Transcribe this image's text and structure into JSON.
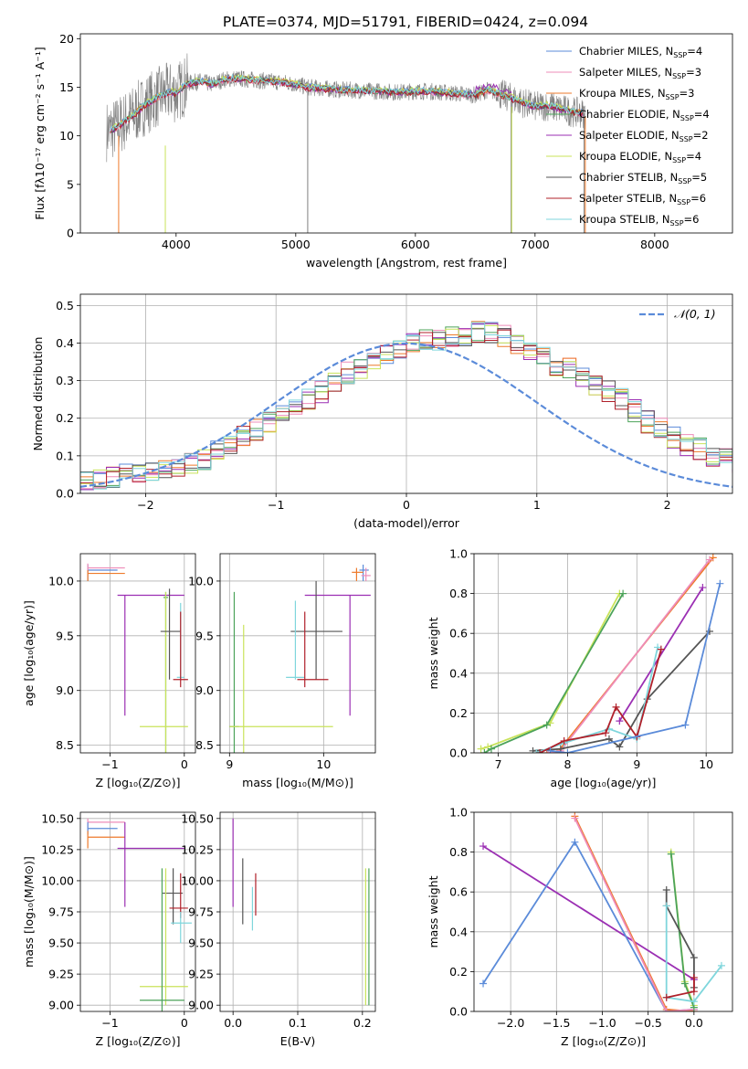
{
  "title": "PLATE=0374, MJD=51791, FIBERID=0424, z=0.094",
  "colors": {
    "chabrier_miles": "#5B8BD9",
    "salpeter_miles": "#EE8CB9",
    "kroupa_miles": "#EE7A2B",
    "chabrier_elodie": "#4CA35A",
    "salpeter_elodie": "#9B2FB3",
    "kroupa_elodie": "#C9E35A",
    "chabrier_stelib": "#555555",
    "salpeter_stelib": "#B0202A",
    "kroupa_stelib": "#7FD6DC",
    "data": "#7f7f7f",
    "normal": "#5B8BD9",
    "grid": "#b0b0b0"
  },
  "chart_data": [
    {
      "id": "spectrum",
      "type": "line",
      "xlabel": "wavelength [Angstrom, rest frame]",
      "ylabel": "Flux [fλ10⁻¹⁷ erg cm⁻² s⁻¹ A⁻¹]",
      "xlim": [
        3200,
        8650
      ],
      "ylim": [
        0,
        20.5
      ],
      "xticks": [
        4000,
        5000,
        6000,
        7000,
        8000
      ],
      "yticks": [
        0,
        5,
        10,
        15,
        20
      ],
      "grid": false,
      "legend_position": "top-right",
      "continuum": {
        "x": [
          3450,
          3550,
          3650,
          3750,
          3850,
          3950,
          4000,
          4100,
          4200,
          4300,
          4400,
          4500,
          4600,
          4700,
          4800,
          4900,
          5000,
          5100,
          5200,
          5300,
          5400,
          5500,
          5600,
          5700,
          5800,
          5900,
          6000,
          6100,
          6200,
          6300,
          6400,
          6500,
          6600,
          6700,
          6800,
          6900,
          7000,
          7100,
          7200,
          7300,
          7400
        ],
        "y": [
          10.5,
          11.3,
          12.2,
          13.3,
          14.0,
          14.5,
          14.4,
          15.4,
          15.6,
          15.3,
          15.8,
          15.9,
          15.8,
          15.7,
          15.6,
          15.5,
          15.3,
          15.0,
          14.9,
          14.8,
          14.7,
          14.7,
          14.6,
          14.6,
          14.5,
          14.5,
          14.6,
          14.6,
          14.5,
          14.4,
          14.3,
          14.2,
          14.7,
          14.3,
          13.9,
          13.4,
          13.0,
          13.1,
          12.8,
          12.5,
          12.3
        ]
      },
      "series": [
        {
          "name": "Chabrier MILES, N",
          "sub": "SSP",
          "suffix": "=4",
          "color_key": "chabrier_miles"
        },
        {
          "name": "Salpeter MILES, N",
          "sub": "SSP",
          "suffix": "=3",
          "color_key": "salpeter_miles"
        },
        {
          "name": "Kroupa MILES, N",
          "sub": "SSP",
          "suffix": "=3",
          "color_key": "kroupa_miles"
        },
        {
          "name": "Chabrier ELODIE, N",
          "sub": "SSP",
          "suffix": "=4",
          "color_key": "chabrier_elodie"
        },
        {
          "name": "Salpeter ELODIE, N",
          "sub": "SSP",
          "suffix": "=2",
          "color_key": "salpeter_elodie"
        },
        {
          "name": "Kroupa ELODIE, N",
          "sub": "SSP",
          "suffix": "=4",
          "color_key": "kroupa_elodie"
        },
        {
          "name": "Chabrier STELIB, N",
          "sub": "SSP",
          "suffix": "=5",
          "color_key": "chabrier_stelib"
        },
        {
          "name": "Salpeter STELIB, N",
          "sub": "SSP",
          "suffix": "=6",
          "color_key": "salpeter_stelib"
        },
        {
          "name": "Kroupa STELIB, N",
          "sub": "SSP",
          "suffix": "=6",
          "color_key": "kroupa_stelib"
        }
      ]
    },
    {
      "id": "residuals",
      "type": "histogram",
      "xlabel": "(data-model)/error",
      "ylabel": "Normed distribution",
      "xlim": [
        -2.5,
        2.5
      ],
      "ylim": [
        0,
        0.53
      ],
      "xticks": [
        -2,
        -1,
        0,
        1,
        2
      ],
      "yticks": [
        0.0,
        0.1,
        0.2,
        0.3,
        0.4,
        0.5
      ],
      "grid": true,
      "bin_width": 0.1,
      "bin_start": -2.5,
      "values": [
        0.03,
        0.04,
        0.04,
        0.05,
        0.05,
        0.06,
        0.06,
        0.07,
        0.08,
        0.09,
        0.11,
        0.13,
        0.15,
        0.17,
        0.19,
        0.21,
        0.23,
        0.25,
        0.27,
        0.29,
        0.32,
        0.33,
        0.35,
        0.37,
        0.39,
        0.4,
        0.41,
        0.41,
        0.42,
        0.42,
        0.43,
        0.43,
        0.42,
        0.4,
        0.38,
        0.36,
        0.34,
        0.33,
        0.31,
        0.29,
        0.27,
        0.25,
        0.22,
        0.19,
        0.17,
        0.15,
        0.13,
        0.12,
        0.1,
        0.09,
        0.08
      ],
      "legend": "𝒩(0, 1)",
      "legend_position": "top-right"
    },
    {
      "id": "age_vs_z",
      "type": "errorbar",
      "xlabel": "Z [log₁₀(Z/Z⊙)]",
      "ylabel": "age  [log₁₀(age/yr)]",
      "xlim": [
        -1.4,
        0.15
      ],
      "ylim": [
        8.43,
        10.25
      ],
      "xticks": [
        -1,
        0
      ],
      "yticks": [
        8.5,
        9.0,
        9.5,
        10.0
      ],
      "points": [
        {
          "c": "chabrier_miles",
          "x": -1.3,
          "y": 10.1,
          "xl": -1.3,
          "xh": -0.9,
          "yl": 10.0,
          "yh": 10.15
        },
        {
          "c": "salpeter_miles",
          "x": -1.3,
          "y": 10.12,
          "xl": -1.3,
          "xh": -0.8,
          "yl": 10.08,
          "yh": 10.16
        },
        {
          "c": "kroupa_miles",
          "x": -1.3,
          "y": 10.07,
          "xl": -1.3,
          "xh": -0.8,
          "yl": 10.0,
          "yh": 10.1
        },
        {
          "c": "salpeter_elodie",
          "x": -0.8,
          "y": 9.87,
          "xl": -0.9,
          "xh": 0.0,
          "yl": 8.77,
          "yh": 9.87
        },
        {
          "c": "chabrier_elodie",
          "x": -0.25,
          "y": 9.85,
          "xl": -0.28,
          "xh": -0.22,
          "yl": 8.35,
          "yh": 9.9
        },
        {
          "c": "kroupa_elodie",
          "x": -0.25,
          "y": 8.67,
          "xl": -0.6,
          "xh": 0.05,
          "yl": 8.3,
          "yh": 9.9
        },
        {
          "c": "chabrier_stelib",
          "x": -0.2,
          "y": 9.54,
          "xl": -0.32,
          "xh": -0.05,
          "yl": 9.1,
          "yh": 9.93
        },
        {
          "c": "kroupa_stelib",
          "x": -0.05,
          "y": 9.12,
          "xl": -0.1,
          "xh": 0.0,
          "yl": 9.1,
          "yh": 9.8
        },
        {
          "c": "salpeter_stelib",
          "x": -0.05,
          "y": 9.1,
          "xl": -0.15,
          "xh": 0.05,
          "yl": 9.03,
          "yh": 9.72
        }
      ]
    },
    {
      "id": "age_vs_mass",
      "type": "errorbar",
      "xlabel": "mass [log₁₀(M/M⊙)]",
      "ylabel": "",
      "xlim": [
        8.9,
        10.55
      ],
      "ylim": [
        8.43,
        10.25
      ],
      "xticks": [
        9,
        10
      ],
      "yticks": [
        8.5,
        9.0,
        9.5,
        10.0
      ],
      "points": [
        {
          "c": "chabrier_miles",
          "x": 10.42,
          "y": 10.1,
          "xl": 10.38,
          "xh": 10.48,
          "yl": 10.0,
          "yh": 10.15
        },
        {
          "c": "salpeter_miles",
          "x": 10.45,
          "y": 10.05,
          "xl": 10.4,
          "xh": 10.5,
          "yl": 10.0,
          "yh": 10.12
        },
        {
          "c": "kroupa_miles",
          "x": 10.35,
          "y": 10.08,
          "xl": 10.3,
          "xh": 10.42,
          "yl": 10.0,
          "yh": 10.12
        },
        {
          "c": "salpeter_elodie",
          "x": 10.28,
          "y": 9.87,
          "xl": 9.8,
          "xh": 10.5,
          "yl": 8.77,
          "yh": 9.87
        },
        {
          "c": "chabrier_elodie",
          "x": 9.05,
          "y": 8.67,
          "xl": 9.0,
          "xh": 9.1,
          "yl": 8.3,
          "yh": 9.9
        },
        {
          "c": "kroupa_elodie",
          "x": 9.15,
          "y": 8.67,
          "xl": 9.0,
          "xh": 10.1,
          "yl": 8.3,
          "yh": 9.6
        },
        {
          "c": "chabrier_stelib",
          "x": 9.92,
          "y": 9.54,
          "xl": 9.65,
          "xh": 10.2,
          "yl": 9.1,
          "yh": 10.0
        },
        {
          "c": "kroupa_stelib",
          "x": 9.7,
          "y": 9.12,
          "xl": 9.6,
          "xh": 9.8,
          "yl": 9.1,
          "yh": 9.82
        },
        {
          "c": "salpeter_stelib",
          "x": 9.8,
          "y": 9.1,
          "xl": 9.72,
          "xh": 10.05,
          "yl": 9.03,
          "yh": 9.72
        }
      ]
    },
    {
      "id": "weight_vs_age",
      "type": "line",
      "xlabel": "age  [log₁₀(age/yr)]",
      "ylabel": "mass weight",
      "xlim": [
        6.65,
        10.38
      ],
      "ylim": [
        0,
        1.0
      ],
      "xticks": [
        7,
        8,
        9,
        10
      ],
      "yticks": [
        0.0,
        0.2,
        0.4,
        0.6,
        0.8,
        1.0
      ],
      "series": [
        {
          "c": "kroupa_elodie",
          "x": [
            6.75,
            6.85,
            7.75,
            8.75
          ],
          "y": [
            0.02,
            0.03,
            0.15,
            0.8
          ]
        },
        {
          "c": "chabrier_elodie",
          "x": [
            6.8,
            6.9,
            7.7,
            8.8
          ],
          "y": [
            0.0,
            0.02,
            0.14,
            0.8
          ]
        },
        {
          "c": "kroupa_miles",
          "x": [
            7.7,
            7.85,
            10.1
          ],
          "y": [
            0.0,
            0.0,
            0.98
          ]
        },
        {
          "c": "salpeter_miles",
          "x": [
            7.72,
            7.9,
            10.05
          ],
          "y": [
            0.0,
            0.01,
            0.97
          ]
        },
        {
          "c": "salpeter_elodie",
          "x": [
            8.75,
            9.95
          ],
          "y": [
            0.16,
            0.83
          ]
        },
        {
          "c": "chabrier_stelib",
          "x": [
            7.5,
            7.9,
            8.6,
            8.75,
            9.15,
            10.05
          ],
          "y": [
            0.01,
            0.02,
            0.07,
            0.03,
            0.27,
            0.61
          ]
        },
        {
          "c": "kroupa_stelib",
          "x": [
            7.55,
            7.95,
            8.6,
            9.0,
            9.3
          ],
          "y": [
            0.0,
            0.05,
            0.12,
            0.07,
            0.53
          ]
        },
        {
          "c": "salpeter_stelib",
          "x": [
            7.6,
            7.95,
            8.55,
            8.7,
            9.0,
            9.35
          ],
          "y": [
            0.0,
            0.06,
            0.1,
            0.23,
            0.08,
            0.52
          ]
        },
        {
          "c": "chabrier_miles",
          "x": [
            7.75,
            8.0,
            9.7,
            10.2
          ],
          "y": [
            0.01,
            0.0,
            0.14,
            0.85
          ]
        }
      ]
    },
    {
      "id": "mass_vs_z",
      "type": "errorbar",
      "xlabel": "Z [log₁₀(Z/Z⊙)]",
      "ylabel": "mass [log₁₀(M/M⊙)]",
      "xlim": [
        -1.4,
        0.15
      ],
      "ylim": [
        8.95,
        10.55
      ],
      "xticks": [
        -1,
        0
      ],
      "yticks": [
        9.0,
        9.25,
        9.5,
        9.75,
        10.0,
        10.25,
        10.5
      ],
      "points": [
        {
          "c": "salpeter_miles",
          "x": -1.3,
          "y": 10.47,
          "xl": -1.3,
          "xh": -0.8,
          "yl": 10.4,
          "yh": 10.5
        },
        {
          "c": "chabrier_miles",
          "x": -1.3,
          "y": 10.42,
          "xl": -1.3,
          "xh": -0.9,
          "yl": 10.37,
          "yh": 10.47
        },
        {
          "c": "kroupa_miles",
          "x": -1.3,
          "y": 10.35,
          "xl": -1.3,
          "xh": -0.8,
          "yl": 10.26,
          "yh": 10.4
        },
        {
          "c": "salpeter_elodie",
          "x": -0.8,
          "y": 10.26,
          "xl": -0.9,
          "xh": 0.0,
          "yl": 9.79,
          "yh": 10.47
        },
        {
          "c": "chabrier_stelib",
          "x": -0.15,
          "y": 9.9,
          "xl": -0.3,
          "xh": -0.02,
          "yl": 9.65,
          "yh": 10.1
        },
        {
          "c": "salpeter_stelib",
          "x": -0.05,
          "y": 9.78,
          "xl": -0.2,
          "xh": 0.05,
          "yl": 9.7,
          "yh": 10.06
        },
        {
          "c": "kroupa_stelib",
          "x": -0.05,
          "y": 9.66,
          "xl": -0.18,
          "xh": 0.1,
          "yl": 9.5,
          "yh": 9.75
        },
        {
          "c": "kroupa_elodie",
          "x": -0.25,
          "y": 9.15,
          "xl": -0.6,
          "xh": 0.05,
          "yl": 9.0,
          "yh": 10.1
        },
        {
          "c": "chabrier_elodie",
          "x": -0.3,
          "y": 9.04,
          "xl": -0.6,
          "xh": 0.0,
          "yl": 8.95,
          "yh": 10.1
        }
      ]
    },
    {
      "id": "mass_vs_ebv",
      "type": "errorbar",
      "xlabel": "E(B-V)",
      "ylabel": "",
      "xlim": [
        -0.02,
        0.22
      ],
      "ylim": [
        8.95,
        10.55
      ],
      "xticks": [
        0.0,
        0.1,
        0.2
      ],
      "yticks": [
        9.0,
        9.25,
        9.5,
        9.75,
        10.0,
        10.25,
        10.5
      ],
      "points": [
        {
          "c": "salpeter_elodie",
          "x": 0.0,
          "y": 10.26,
          "xl": 0.0,
          "xh": 0.0,
          "yl": 9.79,
          "yh": 10.5
        },
        {
          "c": "chabrier_stelib",
          "x": 0.015,
          "y": 9.9,
          "xl": 0.015,
          "xh": 0.015,
          "yl": 9.65,
          "yh": 10.18
        },
        {
          "c": "kroupa_stelib",
          "x": 0.03,
          "y": 9.66,
          "xl": 0.03,
          "xh": 0.03,
          "yl": 9.6,
          "yh": 9.95
        },
        {
          "c": "salpeter_stelib",
          "x": 0.035,
          "y": 9.78,
          "xl": 0.035,
          "xh": 0.035,
          "yl": 9.72,
          "yh": 10.06
        },
        {
          "c": "kroupa_elodie",
          "x": 0.205,
          "y": 9.5,
          "xl": 0.205,
          "xh": 0.205,
          "yl": 9.0,
          "yh": 10.1
        },
        {
          "c": "chabrier_elodie",
          "x": 0.21,
          "y": 9.5,
          "xl": 0.21,
          "xh": 0.21,
          "yl": 9.0,
          "yh": 10.1
        }
      ]
    },
    {
      "id": "weight_vs_z",
      "type": "line",
      "xlabel": "Z [log₁₀(Z/Z⊙)]",
      "ylabel": "mass weight",
      "xlim": [
        -2.4,
        0.42
      ],
      "ylim": [
        0,
        1.0
      ],
      "xticks": [
        -2.0,
        -1.5,
        -1.0,
        -0.5,
        0.0
      ],
      "yticks": [
        0.0,
        0.2,
        0.4,
        0.6,
        0.8,
        1.0
      ],
      "series": [
        {
          "c": "salpeter_elodie",
          "x": [
            -2.3,
            0.0
          ],
          "y": [
            0.83,
            0.16
          ]
        },
        {
          "c": "chabrier_miles",
          "x": [
            -2.3,
            -1.3,
            -0.3,
            0.0
          ],
          "y": [
            0.14,
            0.85,
            0.0,
            0.01
          ]
        },
        {
          "c": "kroupa_miles",
          "x": [
            -1.3,
            -0.3,
            0.0
          ],
          "y": [
            0.98,
            0.01,
            0.0
          ]
        },
        {
          "c": "salpeter_miles",
          "x": [
            -1.3,
            -0.3,
            0.0
          ],
          "y": [
            0.97,
            0.0,
            0.01
          ]
        },
        {
          "c": "kroupa_elodie",
          "x": [
            -0.25,
            -0.1,
            0.0
          ],
          "y": [
            0.8,
            0.15,
            0.03
          ]
        },
        {
          "c": "chabrier_elodie",
          "x": [
            -0.25,
            -0.1,
            0.0
          ],
          "y": [
            0.79,
            0.14,
            0.02
          ]
        },
        {
          "c": "chabrier_stelib",
          "x": [
            -0.3,
            -0.3,
            0.0,
            0.0
          ],
          "y": [
            0.61,
            0.53,
            0.27,
            0.12
          ]
        },
        {
          "c": "kroupa_stelib",
          "x": [
            -0.3,
            -0.3,
            0.0,
            0.3
          ],
          "y": [
            0.53,
            0.07,
            0.05,
            0.23
          ]
        },
        {
          "c": "salpeter_stelib",
          "x": [
            -0.3,
            0.0,
            0.0
          ],
          "y": [
            0.07,
            0.1,
            0.17
          ]
        }
      ]
    }
  ]
}
